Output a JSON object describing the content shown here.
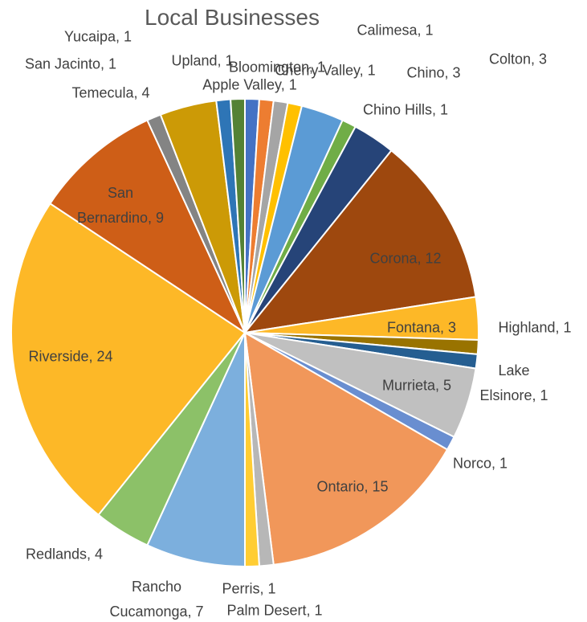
{
  "chart_data": {
    "type": "pie",
    "title": "Local Businesses",
    "categories": [
      "Apple Valley",
      "Bloomington",
      "Calimesa",
      "Cherry Valley",
      "Chino",
      "Chino Hills",
      "Colton",
      "Corona",
      "Fontana",
      "Highland",
      "Lake Elsinore",
      "Murrieta",
      "Norco",
      "Ontario",
      "Palm Desert",
      "Perris",
      "Rancho Cucamonga",
      "Redlands",
      "Riverside",
      "San Bernardino",
      "San Jacinto",
      "Temecula",
      "Upland",
      "Yucaipa"
    ],
    "values": [
      1,
      1,
      1,
      1,
      3,
      1,
      3,
      12,
      3,
      1,
      1,
      5,
      1,
      15,
      1,
      1,
      7,
      4,
      24,
      9,
      1,
      4,
      1,
      1
    ],
    "value_labels": [
      "Apple Valley, 1",
      "Bloomington, 1",
      "Calimesa, 1",
      "Cherry Valley, 1",
      "Chino, 3",
      "Chino Hills, 1",
      "Colton, 3",
      "Corona, 12",
      "Fontana, 3",
      "Highland, 1",
      "Lake Elsinore, 1",
      "Murrieta, 5",
      "Norco, 1",
      "Ontario, 15",
      "Palm Desert, 1",
      "Perris, 1",
      "Rancho Cucamonga, 7",
      "Redlands, 4",
      "Riverside, 24",
      "San Bernardino, 9",
      "San Jacinto, 1",
      "Temecula, 4",
      "Upland, 1",
      "Yucaipa, 1"
    ],
    "colors": [
      "#4472C4",
      "#ED7D31",
      "#A5A5A5",
      "#FFC000",
      "#5B9BD5",
      "#70AD47",
      "#264478",
      "#9E480E",
      "#FDB827",
      "#997300",
      "#255E91",
      "#C0C0C0",
      "#698ED0",
      "#F1975A",
      "#B7B7B7",
      "#FFCD33",
      "#7CAFDD",
      "#8CC168",
      "#FDB827",
      "#CE5E17",
      "#848484",
      "#CC9A06",
      "#2E75B6",
      "#548235"
    ]
  }
}
